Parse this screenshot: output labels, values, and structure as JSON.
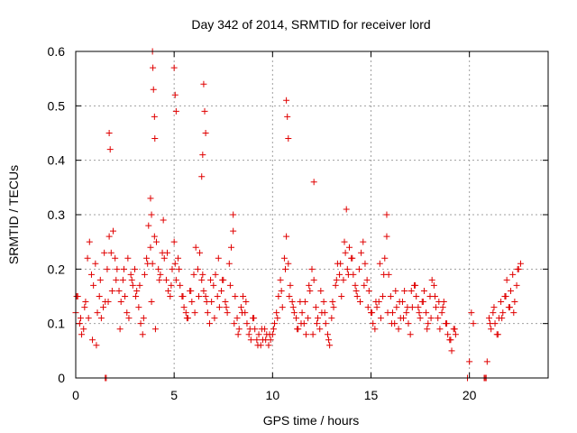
{
  "chart_data": {
    "type": "scatter",
    "title": "Day 342 of 2014, SRMTID for receiver lord",
    "xlabel": "GPS time / hours",
    "ylabel": "SRMTID / TECUs",
    "xlim": [
      0,
      24
    ],
    "ylim": [
      0,
      0.6
    ],
    "xticks": [
      0,
      5,
      10,
      15,
      20
    ],
    "xtick_labels": [
      "0",
      "5",
      "10",
      "15",
      "20"
    ],
    "yticks": [
      0,
      0.1,
      0.2,
      0.3,
      0.4,
      0.5,
      0.6
    ],
    "ytick_labels": [
      "0",
      "0.1",
      "0.2",
      "0.3",
      "0.4",
      "0.5",
      "0.6"
    ],
    "grid": true,
    "marker": "plus",
    "color": "#e00000",
    "series": [
      {
        "name": "SRMTID",
        "x": [
          0.0,
          0.1,
          0.2,
          0.3,
          0.4,
          0.5,
          0.6,
          0.7,
          0.8,
          0.9,
          1.0,
          1.1,
          1.2,
          1.3,
          1.4,
          1.5,
          1.6,
          1.7,
          1.8,
          1.9,
          2.0,
          2.1,
          2.2,
          2.3,
          2.4,
          2.5,
          2.6,
          2.7,
          2.8,
          2.9,
          3.0,
          3.1,
          3.2,
          3.3,
          3.4,
          3.5,
          3.6,
          3.7,
          3.8,
          3.9,
          4.0,
          4.1,
          4.2,
          4.3,
          4.4,
          4.5,
          4.6,
          4.7,
          4.8,
          4.9,
          5.0,
          5.1,
          5.2,
          5.3,
          5.4,
          5.5,
          5.6,
          5.7,
          5.8,
          5.9,
          6.0,
          6.1,
          6.2,
          6.3,
          6.4,
          6.5,
          6.6,
          6.7,
          6.8,
          6.9,
          7.0,
          7.1,
          7.2,
          7.3,
          7.4,
          7.5,
          7.6,
          7.7,
          7.8,
          7.9,
          8.0,
          8.1,
          8.2,
          8.3,
          8.4,
          8.5,
          8.6,
          8.7,
          8.8,
          8.9,
          9.0,
          9.1,
          9.2,
          9.3,
          9.4,
          9.5,
          9.6,
          9.7,
          9.8,
          9.9,
          10.0,
          10.1,
          10.2,
          10.3,
          10.4,
          10.5,
          10.6,
          10.7,
          10.8,
          10.9,
          11.0,
          11.1,
          11.2,
          11.3,
          11.4,
          11.5,
          11.6,
          11.7,
          11.8,
          11.9,
          12.0,
          12.1,
          12.2,
          12.3,
          12.4,
          12.5,
          12.6,
          12.7,
          12.8,
          12.9,
          13.0,
          13.1,
          13.2,
          13.3,
          13.4,
          13.5,
          13.6,
          13.7,
          13.8,
          13.9,
          14.0,
          14.1,
          14.2,
          14.3,
          14.4,
          14.5,
          14.6,
          14.7,
          14.8,
          14.9,
          15.0,
          15.1,
          15.2,
          15.3,
          15.4,
          15.5,
          15.6,
          15.7,
          15.8,
          15.9,
          16.0,
          16.1,
          16.2,
          16.3,
          16.4,
          16.5,
          16.6,
          16.7,
          16.8,
          16.9,
          17.0,
          17.1,
          17.2,
          17.3,
          17.4,
          17.5,
          17.6,
          17.7,
          17.8,
          17.9,
          18.0,
          18.1,
          18.2,
          18.3,
          18.4,
          18.5,
          18.6,
          18.7,
          18.8,
          18.9,
          19.0,
          19.1,
          19.2,
          19.3,
          20.1,
          20.2,
          20.9,
          21.0,
          21.1,
          21.2,
          21.3,
          21.4,
          21.5,
          21.6,
          21.7,
          21.8,
          21.9,
          22.0,
          22.1,
          22.2,
          22.3,
          22.4,
          22.5,
          22.6,
          0.05,
          0.25,
          0.45,
          0.65,
          0.85,
          1.05,
          1.25,
          1.45,
          1.65,
          1.85,
          2.05,
          2.25,
          2.45,
          2.65,
          2.85,
          3.05,
          3.25,
          3.45,
          3.65,
          3.85,
          4.05,
          4.25,
          4.45,
          4.65,
          4.85,
          5.05,
          5.25,
          5.45,
          5.65,
          5.85,
          6.05,
          6.25,
          6.45,
          6.65,
          6.85,
          7.05,
          7.25,
          7.45,
          7.65,
          7.85,
          8.05,
          8.25,
          8.45,
          8.65,
          8.85,
          9.05,
          9.25,
          9.45,
          9.65,
          9.85,
          10.05,
          10.25,
          10.45,
          10.65,
          10.85,
          11.05,
          11.25,
          11.45,
          11.65,
          11.85,
          12.05,
          12.25,
          12.45,
          12.65,
          12.85,
          13.05,
          13.25,
          13.45,
          13.65,
          13.85,
          14.05,
          14.25,
          14.45,
          14.65,
          14.85,
          15.05,
          15.25,
          15.45,
          15.65,
          15.85,
          16.05,
          16.25,
          16.45,
          16.65,
          16.85,
          17.05,
          17.25,
          17.45,
          17.65,
          17.85,
          18.05,
          18.25,
          18.45,
          18.65,
          18.85,
          19.05,
          19.25,
          21.05,
          21.25,
          21.45,
          21.65,
          21.85,
          22.05,
          22.25,
          22.45,
          1.5,
          1.55,
          19.9,
          20.75,
          20.8,
          20.85,
          20.0,
          3.9,
          3.92,
          3.95,
          4.0,
          4.02,
          5.0,
          5.05,
          5.1,
          6.5,
          6.55,
          6.6,
          10.7,
          10.75,
          10.8,
          1.7,
          1.75,
          6.45,
          6.4,
          3.8,
          3.85,
          13.75,
          15.8,
          8.0,
          12.1
        ],
        "y": [
          0.12,
          0.15,
          0.1,
          0.08,
          0.09,
          0.14,
          0.22,
          0.25,
          0.19,
          0.17,
          0.21,
          0.12,
          0.15,
          0.11,
          0.13,
          0.14,
          0.2,
          0.26,
          0.23,
          0.27,
          0.22,
          0.2,
          0.16,
          0.14,
          0.18,
          0.15,
          0.12,
          0.11,
          0.19,
          0.17,
          0.2,
          0.16,
          0.13,
          0.1,
          0.08,
          0.19,
          0.22,
          0.28,
          0.24,
          0.21,
          0.26,
          0.25,
          0.2,
          0.19,
          0.23,
          0.22,
          0.18,
          0.16,
          0.15,
          0.2,
          0.25,
          0.18,
          0.22,
          0.17,
          0.15,
          0.13,
          0.12,
          0.11,
          0.16,
          0.14,
          0.19,
          0.24,
          0.2,
          0.23,
          0.18,
          0.16,
          0.15,
          0.12,
          0.1,
          0.14,
          0.17,
          0.19,
          0.15,
          0.13,
          0.16,
          0.18,
          0.14,
          0.12,
          0.21,
          0.24,
          0.27,
          0.15,
          0.11,
          0.09,
          0.13,
          0.15,
          0.12,
          0.1,
          0.08,
          0.07,
          0.11,
          0.09,
          0.07,
          0.08,
          0.06,
          0.07,
          0.09,
          0.08,
          0.06,
          0.07,
          0.08,
          0.1,
          0.12,
          0.15,
          0.18,
          0.13,
          0.22,
          0.26,
          0.21,
          0.17,
          0.14,
          0.12,
          0.11,
          0.09,
          0.14,
          0.12,
          0.1,
          0.08,
          0.11,
          0.16,
          0.2,
          0.18,
          0.13,
          0.11,
          0.09,
          0.12,
          0.14,
          0.1,
          0.08,
          0.06,
          0.11,
          0.13,
          0.17,
          0.21,
          0.19,
          0.15,
          0.18,
          0.23,
          0.2,
          0.24,
          0.22,
          0.19,
          0.17,
          0.15,
          0.2,
          0.23,
          0.25,
          0.21,
          0.18,
          0.16,
          0.12,
          0.1,
          0.09,
          0.13,
          0.14,
          0.11,
          0.15,
          0.22,
          0.26,
          0.19,
          0.15,
          0.12,
          0.1,
          0.13,
          0.09,
          0.11,
          0.14,
          0.16,
          0.12,
          0.1,
          0.08,
          0.13,
          0.17,
          0.15,
          0.13,
          0.11,
          0.14,
          0.16,
          0.12,
          0.1,
          0.15,
          0.18,
          0.17,
          0.13,
          0.11,
          0.09,
          0.12,
          0.14,
          0.1,
          0.08,
          0.07,
          0.05,
          0.09,
          0.08,
          0.12,
          0.1,
          0.03,
          0.11,
          0.09,
          0.12,
          0.1,
          0.08,
          0.11,
          0.14,
          0.12,
          0.15,
          0.18,
          0.13,
          0.16,
          0.19,
          0.14,
          0.17,
          0.2,
          0.21,
          0.15,
          0.11,
          0.13,
          0.11,
          0.07,
          0.06,
          0.18,
          0.23,
          0.14,
          0.16,
          0.18,
          0.09,
          0.2,
          0.22,
          0.18,
          0.15,
          0.17,
          0.11,
          0.21,
          0.14,
          0.09,
          0.18,
          0.29,
          0.23,
          0.17,
          0.21,
          0.2,
          0.15,
          0.11,
          0.16,
          0.12,
          0.15,
          0.19,
          0.14,
          0.18,
          0.11,
          0.22,
          0.18,
          0.13,
          0.17,
          0.1,
          0.08,
          0.12,
          0.14,
          0.09,
          0.11,
          0.06,
          0.09,
          0.07,
          0.08,
          0.09,
          0.11,
          0.16,
          0.2,
          0.15,
          0.13,
          0.09,
          0.1,
          0.14,
          0.17,
          0.08,
          0.1,
          0.16,
          0.12,
          0.07,
          0.14,
          0.18,
          0.21,
          0.25,
          0.19,
          0.22,
          0.16,
          0.14,
          0.17,
          0.13,
          0.12,
          0.14,
          0.21,
          0.19,
          0.12,
          0.1,
          0.16,
          0.14,
          0.11,
          0.13,
          0.16,
          0.17,
          0.12,
          0.14,
          0.09,
          0.11,
          0.15,
          0.14,
          0.13,
          0.1,
          0.07,
          0.09,
          0.1,
          0.13,
          0.08,
          0.11,
          0.15,
          0.13,
          0.12,
          0.2,
          0.0,
          0.0,
          0.0,
          0.0,
          0.0,
          0.0,
          0.03,
          0.6,
          0.57,
          0.53,
          0.48,
          0.44,
          0.57,
          0.52,
          0.49,
          0.54,
          0.49,
          0.45,
          0.51,
          0.48,
          0.44,
          0.45,
          0.42,
          0.41,
          0.37,
          0.33,
          0.3,
          0.31,
          0.3,
          0.3,
          0.36
        ]
      }
    ],
    "zero_markers_x": [
      1.5,
      1.55,
      19.9,
      20.75,
      20.8,
      20.85
    ]
  }
}
